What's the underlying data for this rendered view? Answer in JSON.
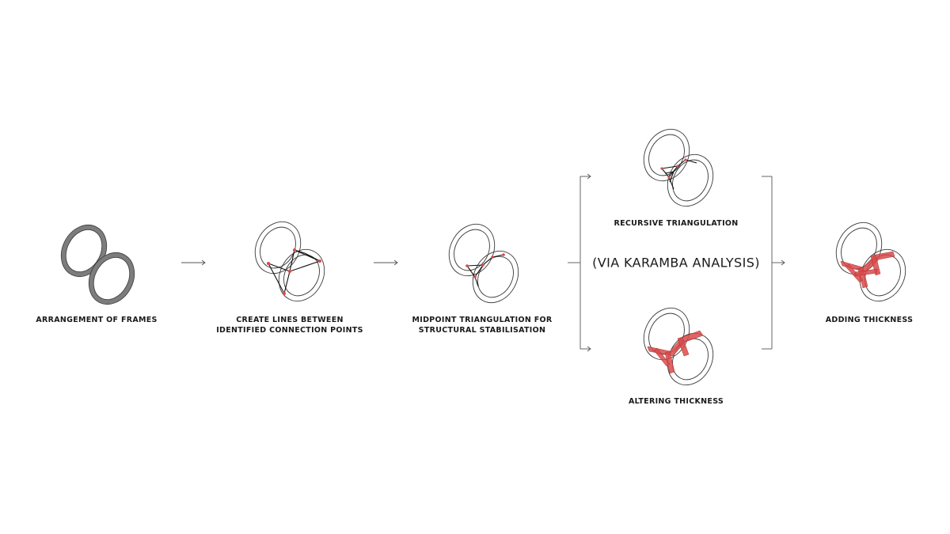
{
  "colors": {
    "frame_stroke": "#3a3a3a",
    "frame_fill": "#7d7d7d",
    "connection": "#111111",
    "highlight": "#d94a4a",
    "arrow": "#555555"
  },
  "steps": [
    {
      "id": "step1",
      "line1": "ARRANGEMENT OF FRAMES",
      "line2": ""
    },
    {
      "id": "step2",
      "line1": "CREATE LINES BETWEEN",
      "line2": "IDENTIFIED CONNECTION POINTS"
    },
    {
      "id": "step3",
      "line1": "MIDPOINT TRIANGULATION FOR",
      "line2": "STRUCTURAL STABILISATION"
    },
    {
      "id": "step4a",
      "line1": "RECURSIVE TRIANGULATION",
      "line2": ""
    },
    {
      "id": "step4b",
      "line1": "ALTERING THICKNESS",
      "line2": ""
    },
    {
      "id": "step5",
      "line1": "ADDING THICKNESS",
      "line2": ""
    }
  ],
  "analysis_label": "(VIA KARAMBA ANALYSIS)"
}
